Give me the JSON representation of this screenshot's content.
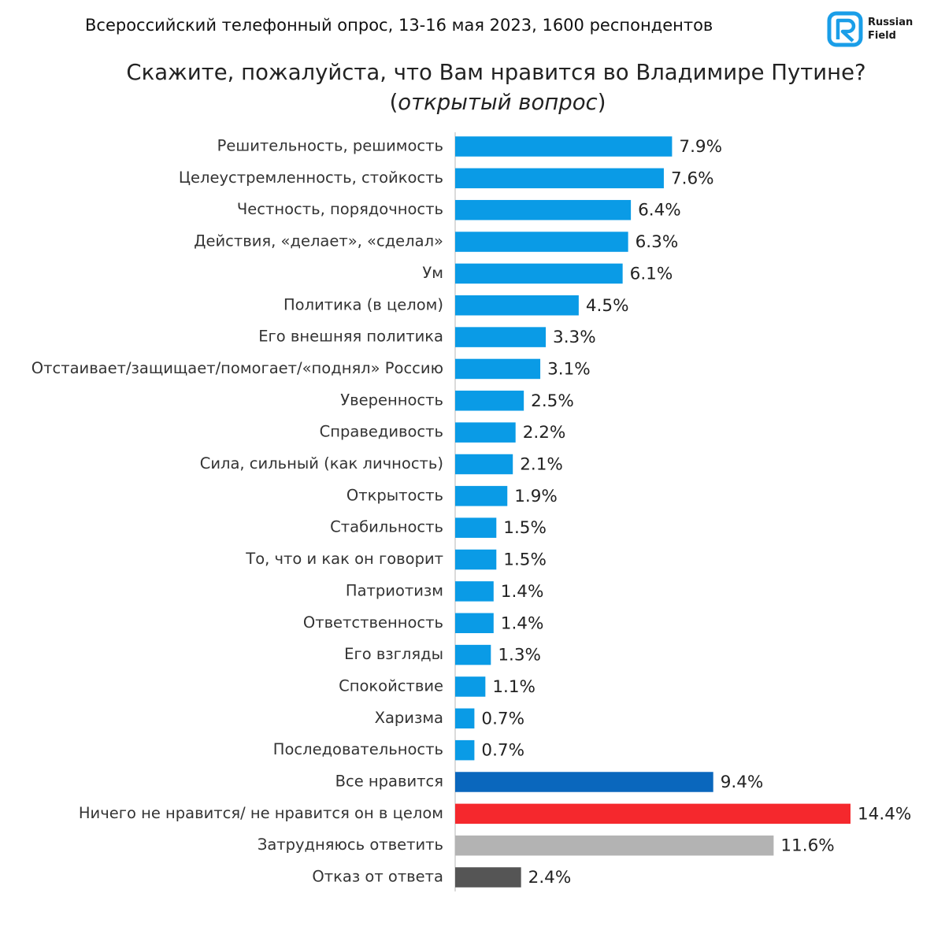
{
  "header": {
    "survey": "Всероссийский телефонный опрос, 13-16 мая 2023, 1600 респондентов",
    "logo_line1": "Russian",
    "logo_line2": "Field"
  },
  "colors": {
    "default": "#0a9be6",
    "all_like": "#0a67bd",
    "nothing": "#f5282d",
    "hard": "#b3b3b3",
    "refusal": "#555555",
    "logo": "#1a9ee8"
  },
  "chart_data": {
    "type": "bar",
    "orientation": "horizontal",
    "title": "Скажите, пожалуйста, что Вам нравится во Владимире Путине?",
    "subtitle_open": "(",
    "subtitle_italic": "открытый вопрос",
    "subtitle_close": ")",
    "unit": "%",
    "xlim": [
      0,
      14.4
    ],
    "categories": [
      "Решительность, решимость",
      "Целеустремленность, стойкость",
      "Честность, порядочность",
      "Действия, «делает», «сделал»",
      "Ум",
      "Политика (в целом)",
      "Его внешняя политика",
      "Отстаивает/защищает/помогает/«поднял» Россию",
      "Уверенность",
      "Справедивость",
      "Сила, сильный (как личность)",
      "Открытость",
      "Стабильность",
      "То, что и как он говорит",
      "Патриотизм",
      "Ответственность",
      "Его взгляды",
      "Спокойствие",
      "Харизма",
      "Последовательность",
      "Все нравится",
      "Ничего не нравится/ не нравится он в целом",
      "Затрудняюсь ответить",
      "Отказ от ответа"
    ],
    "values": [
      7.9,
      7.6,
      6.4,
      6.3,
      6.1,
      4.5,
      3.3,
      3.1,
      2.5,
      2.2,
      2.1,
      1.9,
      1.5,
      1.5,
      1.4,
      1.4,
      1.3,
      1.1,
      0.7,
      0.7,
      9.4,
      14.4,
      11.6,
      2.4
    ],
    "labels": [
      "7.9%",
      "7.6%",
      "6.4%",
      "6.3%",
      "6.1%",
      "4.5%",
      "3.3%",
      "3.1%",
      "2.5%",
      "2.2%",
      "2.1%",
      "1.9%",
      "1.5%",
      "1.5%",
      "1.4%",
      "1.4%",
      "1.3%",
      "1.1%",
      "0.7%",
      "0.7%",
      "9.4%",
      "14.4%",
      "11.6%",
      "2.4%"
    ],
    "bar_colors": [
      "default",
      "default",
      "default",
      "default",
      "default",
      "default",
      "default",
      "default",
      "default",
      "default",
      "default",
      "default",
      "default",
      "default",
      "default",
      "default",
      "default",
      "default",
      "default",
      "default",
      "all_like",
      "nothing",
      "hard",
      "refusal"
    ]
  }
}
